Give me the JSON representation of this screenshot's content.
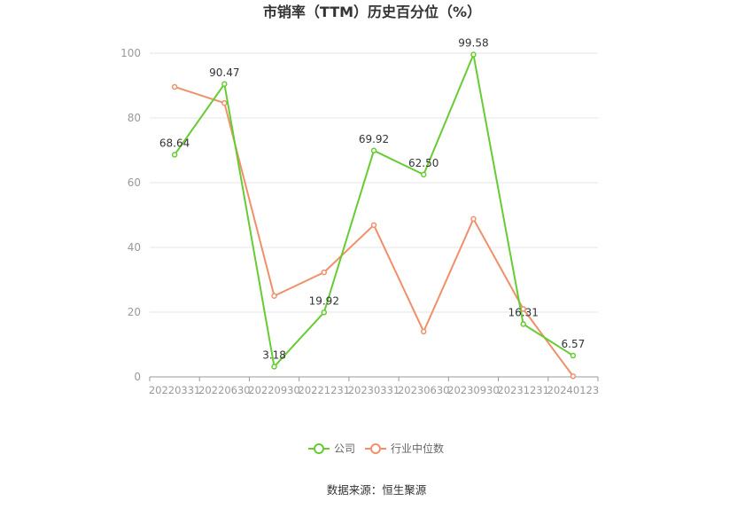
{
  "chart_data": {
    "type": "line",
    "title": "市销率（TTM）历史百分位（%）",
    "categories": [
      "20220331",
      "20220630",
      "20220930",
      "20221231",
      "20230331",
      "20230630",
      "20230930",
      "20231231",
      "20240123"
    ],
    "ylim": [
      0,
      100
    ],
    "yticks": [
      "0",
      "20",
      "40",
      "60",
      "80",
      "100"
    ],
    "grid": true,
    "legend_position": "bottom",
    "series": [
      {
        "name": "公司",
        "color": "#66cc33",
        "values": [
          68.64,
          90.47,
          3.18,
          19.92,
          69.92,
          62.5,
          99.58,
          16.31,
          6.57
        ],
        "labels": [
          "68.64",
          "90.47",
          "3.18",
          "19.92",
          "69.92",
          "62.50",
          "99.58",
          "16.31",
          "6.57"
        ]
      },
      {
        "name": "行业中位数",
        "color": "#f0906a",
        "values": [
          89.6,
          84.6,
          25.0,
          32.3,
          46.9,
          14.0,
          48.8,
          21.0,
          0.2
        ]
      }
    ],
    "source": "数据来源：恒生聚源"
  }
}
